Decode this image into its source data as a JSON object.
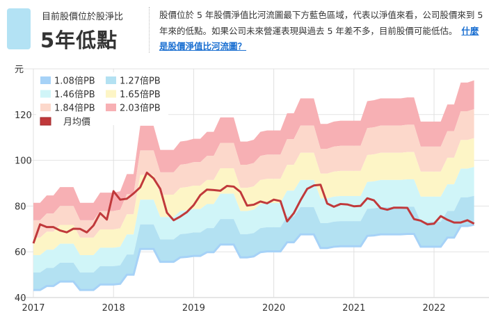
{
  "header": {
    "badge_color": "#b3e2f4",
    "subtitle": "目前股價位於股淨比",
    "title": "5年低點",
    "description": "股價位於 5 年股價淨值比河流圖最下方藍色區域，代表以淨值來看，公司股價來到 5 年來的低點。如果公司未來營運表現與過去 5 年差不多，目前股價可能低估。",
    "link_label": "什麼是股價淨值比河流圖？"
  },
  "chart_data": {
    "type": "area",
    "ylabel": "元",
    "ylim": [
      40,
      140
    ],
    "yticks": [
      "40",
      "60",
      "80",
      "100",
      "120"
    ],
    "xticks": [
      "2017",
      "2018",
      "2019",
      "2020",
      "2021",
      "2022"
    ],
    "x_start": "2017-01",
    "x_end": "2022-07",
    "grid": true,
    "legend_position": "top-left",
    "pb_bands": [
      {
        "name": "1.08倍PB",
        "multiple": 1.08,
        "color": "#a6d2f7"
      },
      {
        "name": "1.27倍PB",
        "multiple": 1.27,
        "color": "#b3e1f2"
      },
      {
        "name": "1.46倍PB",
        "multiple": 1.46,
        "color": "#d0f5f8"
      },
      {
        "name": "1.65倍PB",
        "multiple": 1.65,
        "color": "#fdf5c6"
      },
      {
        "name": "1.84倍PB",
        "multiple": 1.84,
        "color": "#fcd8cb"
      },
      {
        "name": "2.03倍PB",
        "multiple": 2.03,
        "color": "#f7b0b4"
      }
    ],
    "book_value_per_share": [
      40.1,
      40.1,
      41.7,
      41.7,
      43.5,
      43.5,
      43.5,
      40.1,
      40.1,
      40.1,
      42.3,
      42.3,
      42.3,
      42.6,
      46.3,
      46.3,
      56.7,
      56.7,
      56.7,
      51.5,
      51.5,
      51.5,
      53.3,
      53.5,
      53.9,
      53.9,
      55.4,
      55.4,
      58.5,
      58.5,
      58.5,
      53.3,
      53.3,
      53.7,
      55.4,
      55.7,
      55.7,
      55.7,
      59.4,
      59.4,
      62.6,
      62.6,
      62.6,
      57.1,
      57.1,
      57.6,
      57.8,
      57.8,
      57.8,
      57.8,
      62.0,
      62.2,
      62.6,
      62.6,
      62.6,
      62.6,
      62.8,
      62.8,
      57.6,
      57.6,
      57.6,
      57.6,
      61.3,
      61.3,
      66.0,
      66.0,
      66.5
    ],
    "price_series": {
      "name": "月均價",
      "color": "#c0393b",
      "values": [
        63.7,
        72,
        70.8,
        70.8,
        69.3,
        68.5,
        70.1,
        70,
        68.5,
        71.5,
        76.9,
        74.1,
        86.5,
        82.8,
        83.2,
        85.5,
        88.2,
        94.6,
        92.1,
        87.5,
        77.1,
        73.8,
        75.4,
        77.4,
        80.4,
        84.8,
        87.2,
        87,
        86.7,
        88.8,
        88.5,
        86.2,
        80.2,
        80.6,
        82,
        81.2,
        82.8,
        82.2,
        73.3,
        76.9,
        82.5,
        87.5,
        89,
        89.3,
        81.1,
        79.7,
        80.9,
        80.7,
        79.9,
        80.1,
        83.4,
        82.5,
        79.1,
        78.4,
        79.3,
        79.3,
        79.2,
        74.3,
        73.6,
        72,
        72.3,
        75.6,
        74,
        72.8,
        72.8,
        73.8,
        72.3
      ]
    }
  }
}
